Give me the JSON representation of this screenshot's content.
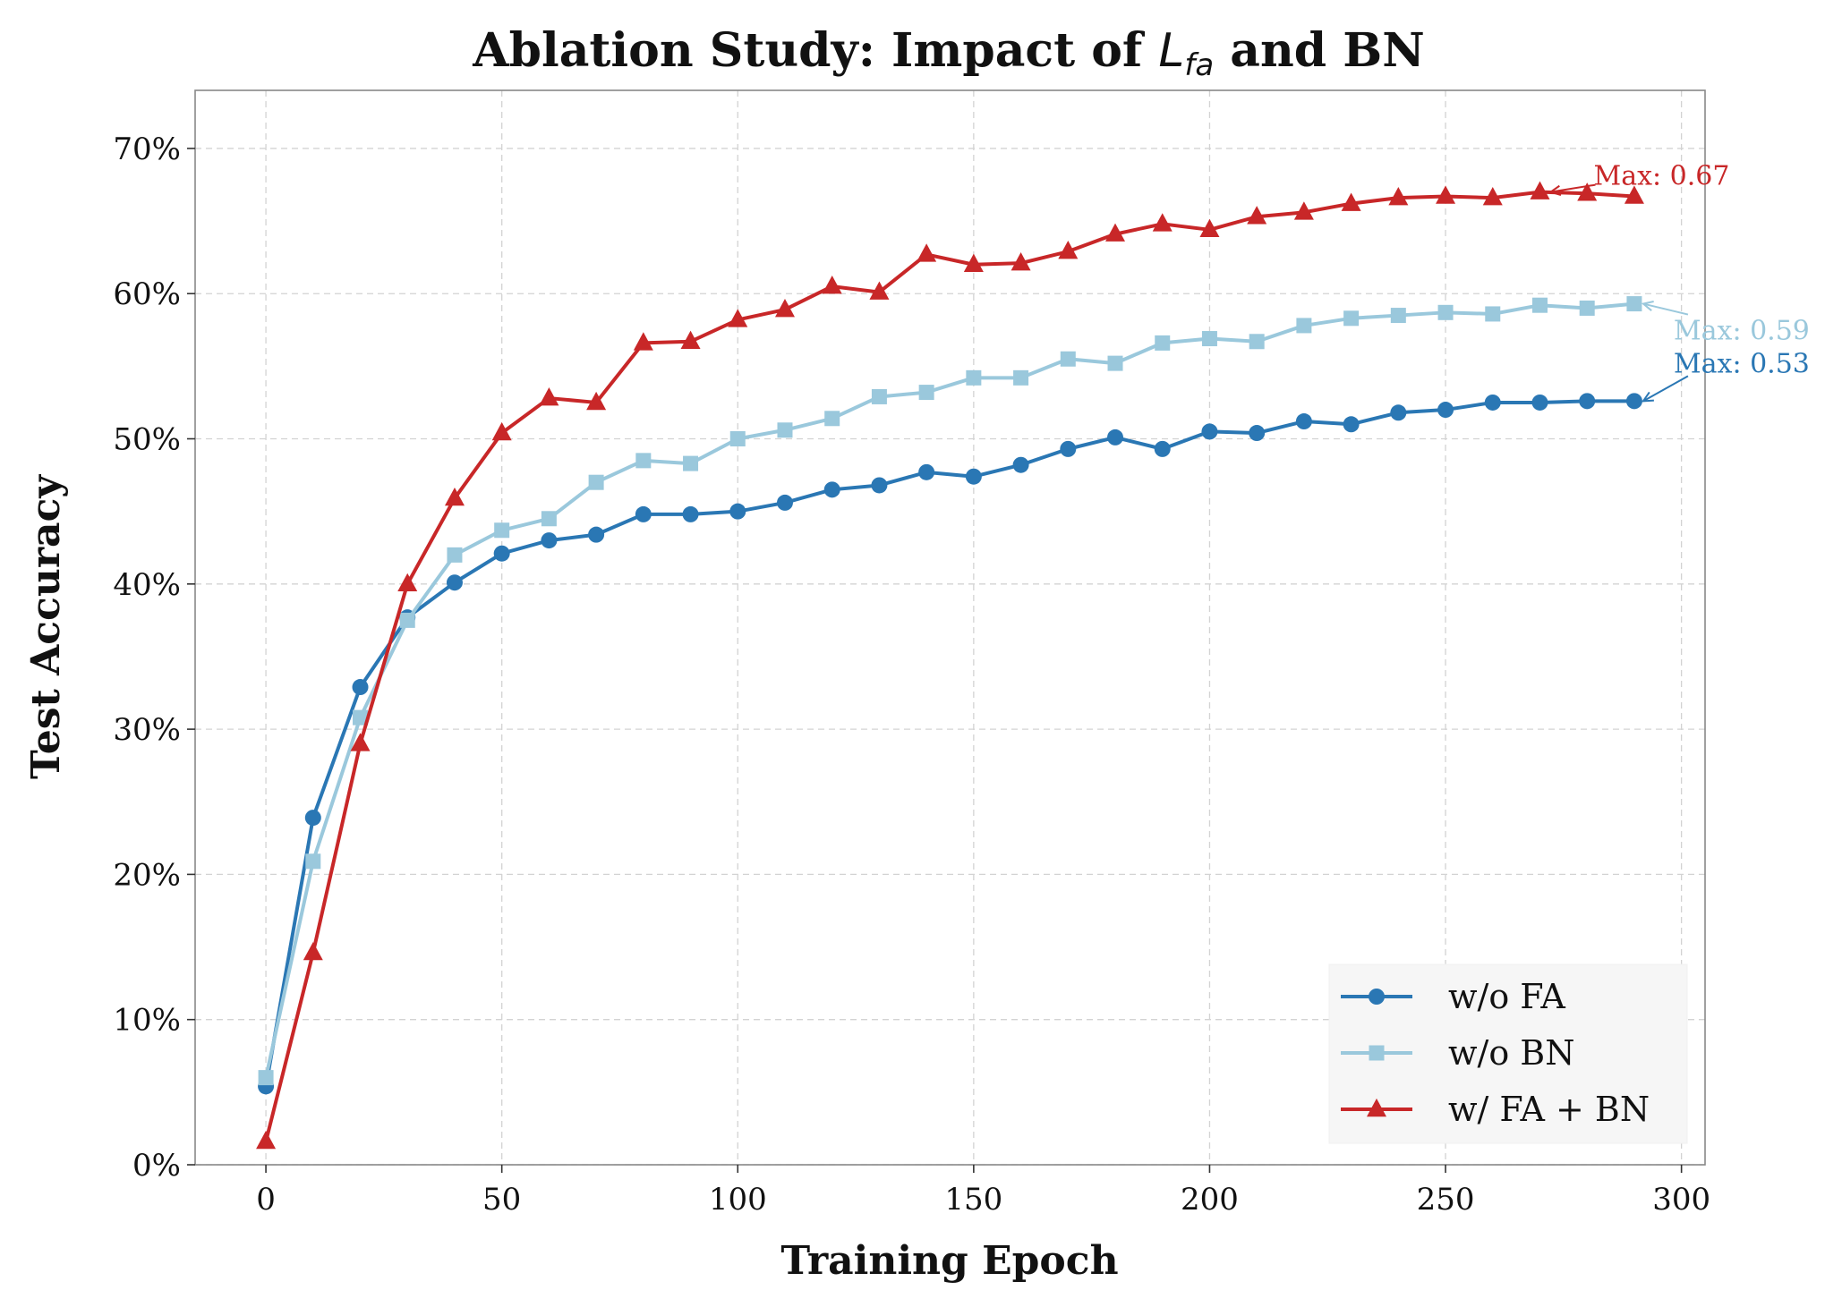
{
  "chart_data": {
    "type": "line",
    "title_prefix": "Ablation Study: Impact of ",
    "title_math_main": "L",
    "title_math_sub": "fa",
    "title_suffix": " and BN",
    "xlabel": "Training Epoch",
    "ylabel": "Test Accuracy",
    "xlim": [
      -15,
      305
    ],
    "ylim": [
      0,
      0.74
    ],
    "xticks": [
      0,
      50,
      100,
      150,
      200,
      250,
      300
    ],
    "xtick_labels": [
      "0",
      "50",
      "100",
      "150",
      "200",
      "250",
      "300"
    ],
    "yticks": [
      0,
      0.1,
      0.2,
      0.3,
      0.4,
      0.5,
      0.6,
      0.7
    ],
    "ytick_labels": [
      "0%",
      "10%",
      "20%",
      "30%",
      "40%",
      "50%",
      "60%",
      "70%"
    ],
    "grid": true,
    "legend_position": "lower-right",
    "x": [
      0,
      10,
      20,
      30,
      40,
      50,
      60,
      70,
      80,
      90,
      100,
      110,
      120,
      130,
      140,
      150,
      160,
      170,
      180,
      190,
      200,
      210,
      220,
      230,
      240,
      250,
      260,
      270,
      280,
      290
    ],
    "series": [
      {
        "name": "w/o FA",
        "color": "#2a77b4",
        "marker": "circle",
        "values": [
          0.054,
          0.239,
          0.329,
          0.377,
          0.401,
          0.421,
          0.43,
          0.434,
          0.448,
          0.448,
          0.45,
          0.456,
          0.465,
          0.468,
          0.477,
          0.474,
          0.482,
          0.493,
          0.501,
          0.493,
          0.505,
          0.504,
          0.512,
          0.51,
          0.518,
          0.52,
          0.525,
          0.525,
          0.526,
          0.526
        ],
        "annotation": "Max: 0.53"
      },
      {
        "name": "w/o BN",
        "color": "#9ac8dc",
        "marker": "square",
        "values": [
          0.06,
          0.209,
          0.308,
          0.375,
          0.42,
          0.437,
          0.445,
          0.47,
          0.485,
          0.483,
          0.5,
          0.506,
          0.514,
          0.529,
          0.532,
          0.542,
          0.542,
          0.555,
          0.552,
          0.566,
          0.569,
          0.567,
          0.578,
          0.583,
          0.585,
          0.587,
          0.586,
          0.592,
          0.59,
          0.593
        ],
        "annotation": "Max: 0.59"
      },
      {
        "name": "w/ FA + BN",
        "color": "#c82728",
        "marker": "triangle",
        "values": [
          0.016,
          0.146,
          0.29,
          0.4,
          0.459,
          0.504,
          0.528,
          0.525,
          0.566,
          0.567,
          0.582,
          0.589,
          0.605,
          0.601,
          0.627,
          0.62,
          0.621,
          0.629,
          0.641,
          0.648,
          0.644,
          0.653,
          0.656,
          0.662,
          0.666,
          0.667,
          0.666,
          0.67,
          0.669,
          0.667
        ],
        "annotation": "Max: 0.67"
      }
    ]
  }
}
